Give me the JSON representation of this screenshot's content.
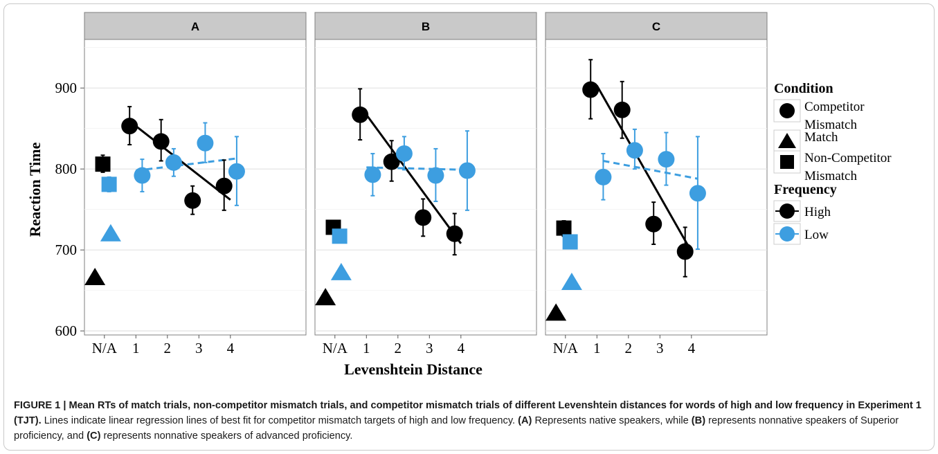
{
  "chart_data": {
    "type": "scatter",
    "ylabel": "Reaction Time",
    "xlabel": "Levenshtein Distance",
    "ylim": [
      595,
      960
    ],
    "yticks": [
      600,
      700,
      800,
      900
    ],
    "xtick_labels": [
      "N/A",
      "1",
      "2",
      "3",
      "4"
    ],
    "legend": {
      "position": "right",
      "condition_title": "Condition",
      "condition_items": [
        {
          "lines": [
            "Competitor",
            "Mismatch"
          ],
          "shape": "circle"
        },
        {
          "lines": [
            "Match"
          ],
          "shape": "triangle"
        },
        {
          "lines": [
            "Non-Competitor",
            "Mismatch"
          ],
          "shape": "square"
        }
      ],
      "frequency_title": "Frequency",
      "frequency_items": [
        {
          "label": "High",
          "color": "#000000"
        },
        {
          "label": "Low",
          "color": "#3d9ee0"
        }
      ]
    },
    "colors": {
      "High": "#000000",
      "Low": "#3d9ee0",
      "strip": "#c9c9c9",
      "grid": "#ebebeb"
    },
    "panels": [
      {
        "label": "A",
        "points": [
          {
            "cond": "Match",
            "freq": "High",
            "x": "N/A",
            "off": -0.3,
            "y": 666
          },
          {
            "cond": "Match",
            "freq": "Low",
            "x": "N/A",
            "off": 0.2,
            "y": 720
          },
          {
            "cond": "Non-Competitor Mismatch",
            "freq": "High",
            "x": "N/A",
            "off": -0.05,
            "y": 806,
            "err": [
              796,
              817
            ]
          },
          {
            "cond": "Non-Competitor Mismatch",
            "freq": "Low",
            "x": "N/A",
            "off": 0.15,
            "y": 781,
            "err": [
              772,
              790
            ]
          },
          {
            "cond": "Competitor Mismatch",
            "freq": "High",
            "x": 1,
            "off": -0.2,
            "y": 853,
            "err": [
              830,
              877
            ]
          },
          {
            "cond": "Competitor Mismatch",
            "freq": "High",
            "x": 2,
            "off": -0.2,
            "y": 834,
            "err": [
              810,
              861
            ]
          },
          {
            "cond": "Competitor Mismatch",
            "freq": "High",
            "x": 3,
            "off": -0.2,
            "y": 761,
            "err": [
              744,
              779
            ]
          },
          {
            "cond": "Competitor Mismatch",
            "freq": "High",
            "x": 4,
            "off": -0.2,
            "y": 779,
            "err": [
              749,
              811
            ]
          },
          {
            "cond": "Competitor Mismatch",
            "freq": "Low",
            "x": 1,
            "off": 0.2,
            "y": 792,
            "err": [
              772,
              812
            ]
          },
          {
            "cond": "Competitor Mismatch",
            "freq": "Low",
            "x": 2,
            "off": 0.2,
            "y": 808,
            "err": [
              791,
              825
            ]
          },
          {
            "cond": "Competitor Mismatch",
            "freq": "Low",
            "x": 3,
            "off": 0.2,
            "y": 832,
            "err": [
              808,
              857
            ]
          },
          {
            "cond": "Competitor Mismatch",
            "freq": "Low",
            "x": 4,
            "off": 0.2,
            "y": 797,
            "err": [
              755,
              840
            ]
          }
        ],
        "lines": [
          {
            "freq": "High",
            "from": [
              1,
              853
            ],
            "to": [
              4,
              762
            ]
          },
          {
            "freq": "Low",
            "from": [
              1,
              798
            ],
            "to": [
              4.2,
              813
            ]
          }
        ]
      },
      {
        "label": "B",
        "points": [
          {
            "cond": "Match",
            "freq": "High",
            "x": "N/A",
            "off": -0.3,
            "y": 641
          },
          {
            "cond": "Match",
            "freq": "Low",
            "x": "N/A",
            "off": 0.2,
            "y": 672
          },
          {
            "cond": "Non-Competitor Mismatch",
            "freq": "High",
            "x": "N/A",
            "off": -0.05,
            "y": 728,
            "err": [
              722,
              735
            ]
          },
          {
            "cond": "Non-Competitor Mismatch",
            "freq": "Low",
            "x": "N/A",
            "off": 0.15,
            "y": 717,
            "err": [
              711,
              724
            ]
          },
          {
            "cond": "Competitor Mismatch",
            "freq": "High",
            "x": 1,
            "off": -0.2,
            "y": 867,
            "err": [
              836,
              899
            ]
          },
          {
            "cond": "Competitor Mismatch",
            "freq": "High",
            "x": 2,
            "off": -0.2,
            "y": 809,
            "err": [
              785,
              835
            ]
          },
          {
            "cond": "Competitor Mismatch",
            "freq": "High",
            "x": 3,
            "off": -0.2,
            "y": 740,
            "err": [
              717,
              763
            ]
          },
          {
            "cond": "Competitor Mismatch",
            "freq": "High",
            "x": 4,
            "off": -0.2,
            "y": 720,
            "err": [
              694,
              745
            ]
          },
          {
            "cond": "Competitor Mismatch",
            "freq": "Low",
            "x": 1,
            "off": 0.2,
            "y": 793,
            "err": [
              767,
              819
            ]
          },
          {
            "cond": "Competitor Mismatch",
            "freq": "Low",
            "x": 2,
            "off": 0.2,
            "y": 819,
            "err": [
              799,
              840
            ]
          },
          {
            "cond": "Competitor Mismatch",
            "freq": "Low",
            "x": 3,
            "off": 0.2,
            "y": 792,
            "err": [
              760,
              825
            ]
          },
          {
            "cond": "Competitor Mismatch",
            "freq": "Low",
            "x": 4,
            "off": 0.2,
            "y": 798,
            "err": [
              749,
              847
            ]
          }
        ],
        "lines": [
          {
            "freq": "High",
            "from": [
              1,
              867
            ],
            "to": [
              4,
              708
            ]
          },
          {
            "freq": "Low",
            "from": [
              1,
              802
            ],
            "to": [
              4.2,
              799
            ]
          }
        ]
      },
      {
        "label": "C",
        "points": [
          {
            "cond": "Match",
            "freq": "High",
            "x": "N/A",
            "off": -0.3,
            "y": 622
          },
          {
            "cond": "Match",
            "freq": "Low",
            "x": "N/A",
            "off": 0.2,
            "y": 660
          },
          {
            "cond": "Non-Competitor Mismatch",
            "freq": "High",
            "x": "N/A",
            "off": -0.05,
            "y": 727,
            "err": [
              717,
              736
            ]
          },
          {
            "cond": "Non-Competitor Mismatch",
            "freq": "Low",
            "x": "N/A",
            "off": 0.15,
            "y": 710,
            "err": [
              703,
              717
            ]
          },
          {
            "cond": "Competitor Mismatch",
            "freq": "High",
            "x": 1,
            "off": -0.2,
            "y": 898,
            "err": [
              862,
              935
            ]
          },
          {
            "cond": "Competitor Mismatch",
            "freq": "High",
            "x": 2,
            "off": -0.2,
            "y": 873,
            "err": [
              838,
              908
            ]
          },
          {
            "cond": "Competitor Mismatch",
            "freq": "High",
            "x": 3,
            "off": -0.2,
            "y": 732,
            "err": [
              707,
              759
            ]
          },
          {
            "cond": "Competitor Mismatch",
            "freq": "High",
            "x": 4,
            "off": -0.2,
            "y": 698,
            "err": [
              667,
              728
            ]
          },
          {
            "cond": "Competitor Mismatch",
            "freq": "Low",
            "x": 1,
            "off": 0.2,
            "y": 790,
            "err": [
              762,
              819
            ]
          },
          {
            "cond": "Competitor Mismatch",
            "freq": "Low",
            "x": 2,
            "off": 0.2,
            "y": 823,
            "err": [
              800,
              849
            ]
          },
          {
            "cond": "Competitor Mismatch",
            "freq": "Low",
            "x": 3,
            "off": 0.2,
            "y": 812,
            "err": [
              780,
              845
            ]
          },
          {
            "cond": "Competitor Mismatch",
            "freq": "Low",
            "x": 4,
            "off": 0.2,
            "y": 770,
            "err": [
              701,
              840
            ]
          }
        ],
        "lines": [
          {
            "freq": "High",
            "from": [
              1,
              903
            ],
            "to": [
              4,
              698
            ]
          },
          {
            "freq": "Low",
            "from": [
              1.2,
              810
            ],
            "to": [
              4.2,
              788
            ]
          }
        ]
      }
    ]
  },
  "caption": {
    "lead": "FIGURE 1 | Mean RTs of match trials, non-competitor mismatch trials, and competitor mismatch trials of different Levenshtein distances for words of high and low frequency in Experiment 1 (TJT).",
    "t1": " Lines indicate linear regression lines of best fit for competitor mismatch targets of high and low frequency. ",
    "ref_a": "(A)",
    "t2": " Represents native speakers, while ",
    "ref_b": "(B)",
    "t3": " represents nonnative speakers of Superior proficiency, and ",
    "ref_c": "(C)",
    "t4": " represents nonnative speakers of advanced proficiency."
  }
}
